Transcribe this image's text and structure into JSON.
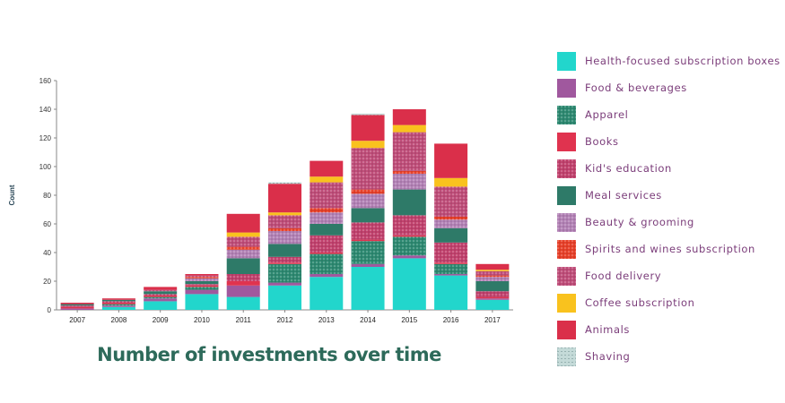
{
  "chart_data": {
    "type": "bar",
    "stacked": true,
    "title": "Number of investments over time",
    "ylabel": "Count",
    "xlabel": "",
    "ylim": [
      0,
      160
    ],
    "yticks": [
      0,
      20,
      40,
      60,
      80,
      100,
      120,
      140,
      160
    ],
    "grid": false,
    "legend_position": "right",
    "categories": [
      "2007",
      "2008",
      "2009",
      "2010",
      "2011",
      "2012",
      "2013",
      "2014",
      "2015",
      "2016",
      "2017"
    ],
    "series": [
      {
        "name": "Health-focused subscription boxes",
        "color": "#22d6cc",
        "pattern": "solid",
        "values": [
          0,
          2,
          6,
          11,
          9,
          17,
          23,
          30,
          36,
          24,
          7
        ]
      },
      {
        "name": "Food & beverages",
        "color": "#a0589e",
        "pattern": "solid",
        "values": [
          1,
          1,
          2,
          3,
          8,
          2,
          2,
          2,
          2,
          1,
          1
        ]
      },
      {
        "name": "Apparel",
        "color": "#2e8a72",
        "pattern": "dots",
        "values": [
          0,
          1,
          1,
          2,
          0,
          13,
          14,
          16,
          13,
          7,
          0
        ]
      },
      {
        "name": "Books",
        "color": "#e0334f",
        "pattern": "solid",
        "values": [
          1,
          1,
          1,
          1,
          3,
          1,
          1,
          1,
          1,
          1,
          1
        ]
      },
      {
        "name": "Kid's education",
        "color": "#c2426e",
        "pattern": "dots",
        "values": [
          1,
          1,
          1,
          1,
          5,
          4,
          12,
          12,
          14,
          14,
          4
        ]
      },
      {
        "name": "Meal services",
        "color": "#2e7a68",
        "pattern": "solid",
        "values": [
          1,
          1,
          2,
          2,
          11,
          9,
          8,
          10,
          18,
          10,
          7
        ]
      },
      {
        "name": "Beauty & grooming",
        "color": "#b382b6",
        "pattern": "dots",
        "values": [
          0,
          0,
          0,
          2,
          6,
          9,
          8,
          10,
          11,
          6,
          3
        ]
      },
      {
        "name": "Spirits and wines subscription",
        "color": "#e8412a",
        "pattern": "dots",
        "values": [
          0,
          0,
          0,
          1,
          2,
          2,
          3,
          3,
          2,
          2,
          1
        ]
      },
      {
        "name": "Food delivery",
        "color": "#c04e7a",
        "pattern": "dots",
        "values": [
          0,
          0,
          1,
          1,
          7,
          9,
          18,
          29,
          27,
          21,
          3
        ]
      },
      {
        "name": "Coffee subscription",
        "color": "#f9c21e",
        "pattern": "solid",
        "values": [
          0,
          0,
          0,
          0,
          3,
          2,
          4,
          5,
          5,
          6,
          1
        ]
      },
      {
        "name": "Animals",
        "color": "#da2f4a",
        "pattern": "solid",
        "values": [
          1,
          1,
          2,
          1,
          13,
          20,
          11,
          18,
          11,
          24,
          4
        ]
      },
      {
        "name": "Shaving",
        "color": "#c4dad8",
        "pattern": "dashed",
        "values": [
          0,
          0,
          0,
          0,
          0,
          1,
          0,
          1,
          0,
          0,
          0
        ]
      }
    ]
  }
}
